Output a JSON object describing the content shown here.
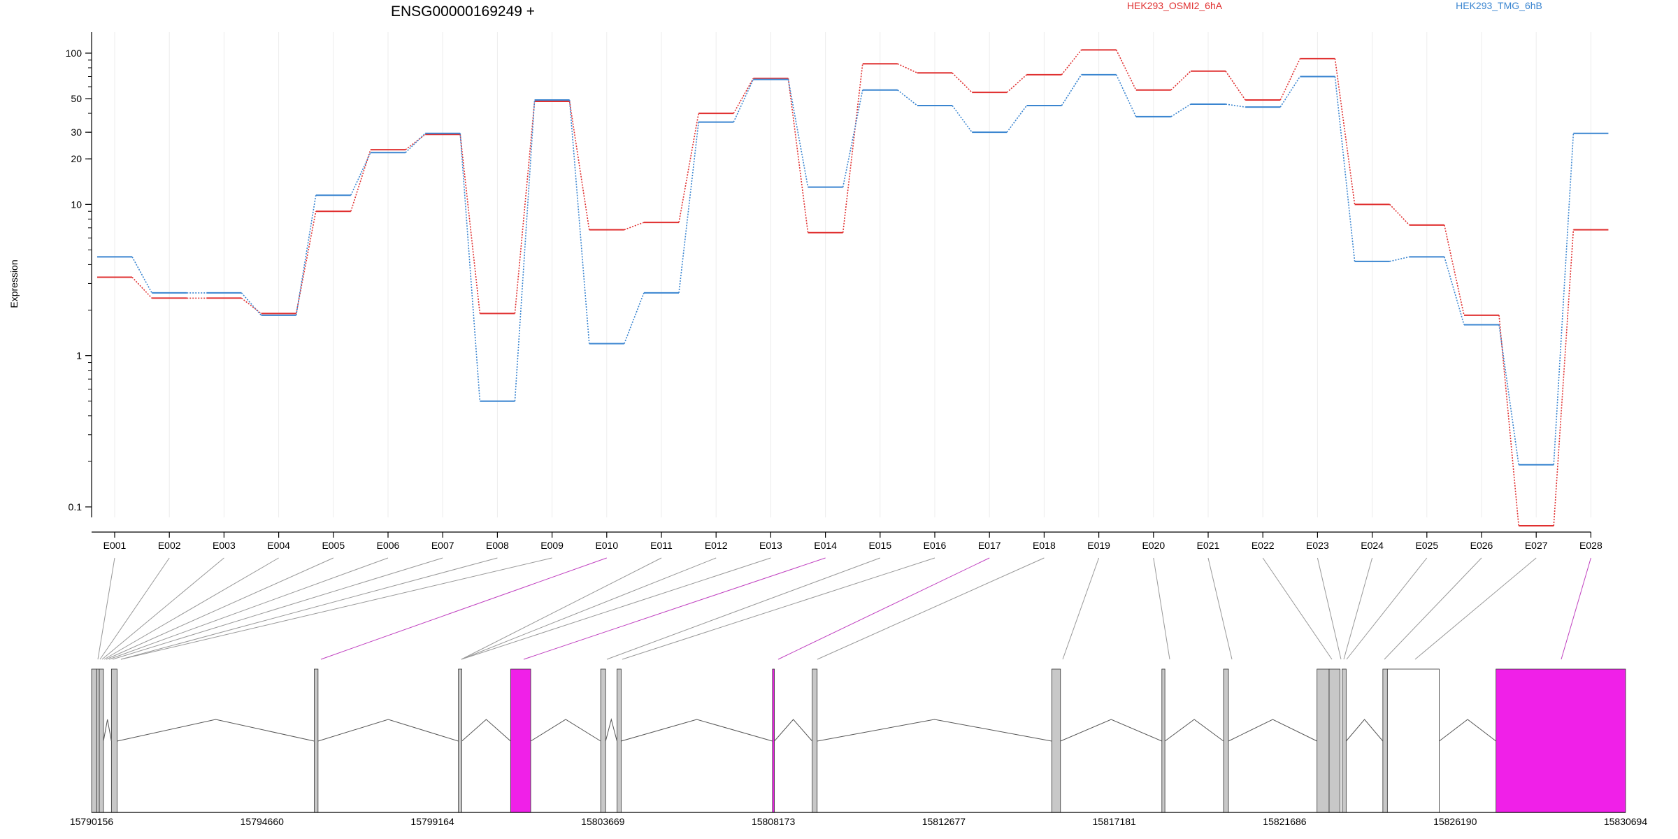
{
  "chart_data": {
    "type": "line",
    "title": "ENSG00000169249 +",
    "ylabel": "Expression",
    "yscale": "log",
    "ylim": [
      0.07,
      150
    ],
    "yticks": [
      0.1,
      1,
      10,
      20,
      30,
      50,
      100
    ],
    "ytick_labels": [
      "0.1",
      "1",
      "10",
      "20",
      "30",
      "50",
      "100"
    ],
    "grid": "vertical",
    "legend_position": "top",
    "categories": [
      "E001",
      "E002",
      "E003",
      "E004",
      "E005",
      "E006",
      "E007",
      "E008",
      "E009",
      "E010",
      "E011",
      "E012",
      "E013",
      "E014",
      "E015",
      "E016",
      "E017",
      "E018",
      "E019",
      "E020",
      "E021",
      "E022",
      "E023",
      "E024",
      "E025",
      "E026",
      "E027",
      "E028"
    ],
    "series": [
      {
        "name": "HEK293_OSMI2_6hA",
        "color": "#e03030",
        "values": [
          3.3,
          2.4,
          2.4,
          1.9,
          9.0,
          23,
          29,
          1.9,
          48,
          6.8,
          7.6,
          40,
          68,
          6.5,
          85,
          74,
          55,
          72,
          105,
          57,
          76,
          49,
          92,
          10,
          7.3,
          1.85,
          0.075,
          6.8
        ]
      },
      {
        "name": "HEK293_TMG_6hB",
        "color": "#3a85d0",
        "values": [
          4.5,
          2.6,
          2.6,
          1.85,
          11.5,
          22,
          29.5,
          0.5,
          49,
          1.2,
          2.6,
          35,
          67,
          13,
          57,
          45,
          30,
          45,
          72,
          38,
          46,
          44,
          70,
          4.2,
          4.5,
          1.6,
          0.19,
          29.5
        ]
      }
    ],
    "genomic_axis": {
      "tick_labels": [
        "15790156",
        "15794660",
        "15799164",
        "15803669",
        "15808173",
        "15812677",
        "15817181",
        "15821686",
        "15826190",
        "15830694"
      ],
      "range": [
        15790156,
        15830694
      ]
    },
    "gene_model": {
      "exon_fill": "#c8c8c8",
      "highlight_fill": "#f020e8",
      "highlighted_exons": [
        "E010",
        "E014",
        "E017",
        "E028"
      ]
    }
  }
}
